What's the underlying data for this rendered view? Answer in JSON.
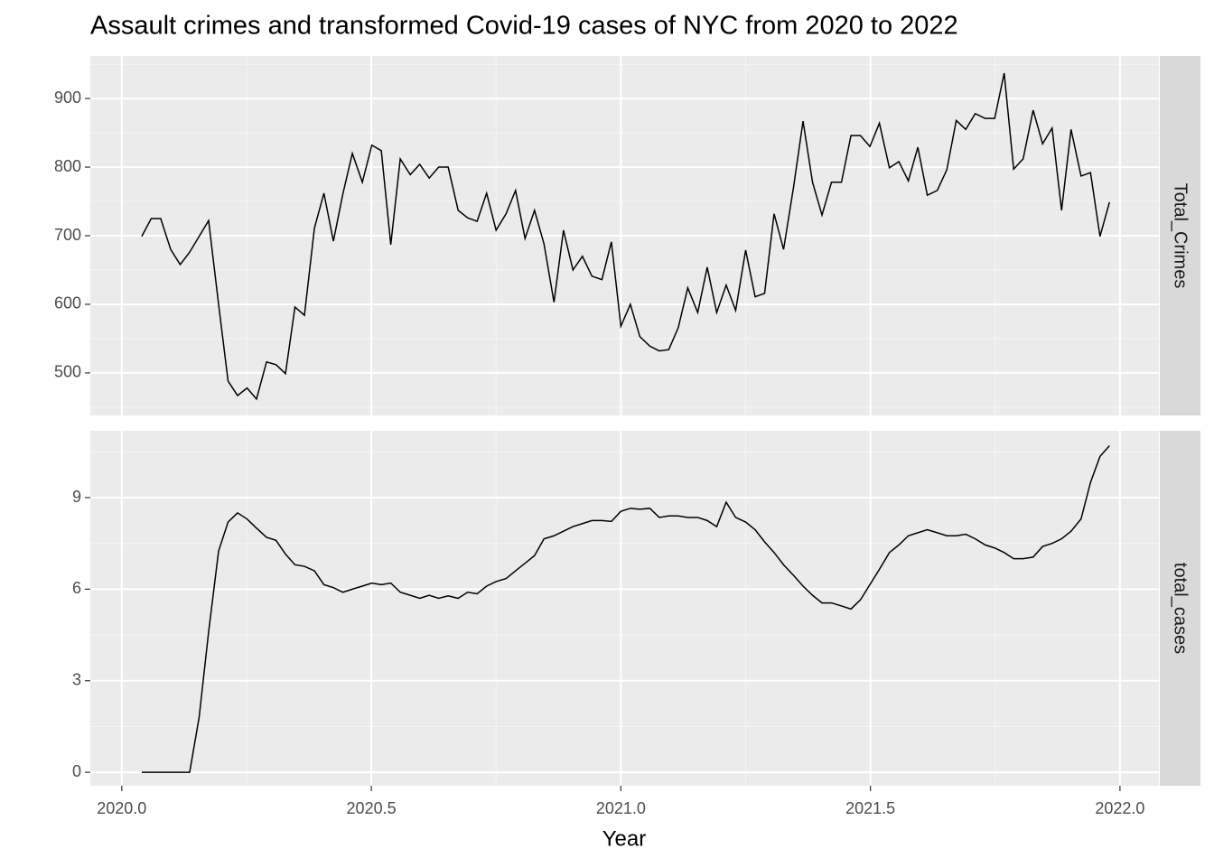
{
  "chart_data": [
    {
      "type": "line",
      "title": "Assault crimes and transformed Covid-19 cases of NYC from 2020 to 2022",
      "strip": "Total_Crimes",
      "color": "#000000",
      "grid": true,
      "xlim": [
        2019.937,
        2022.078
      ],
      "ylim": [
        438,
        962
      ],
      "yticks": [
        500,
        600,
        700,
        800,
        900
      ],
      "x": [
        2020.04,
        2020.059,
        2020.078,
        2020.098,
        2020.117,
        2020.136,
        2020.155,
        2020.174,
        2020.194,
        2020.213,
        2020.232,
        2020.251,
        2020.27,
        2020.29,
        2020.309,
        2020.328,
        2020.347,
        2020.366,
        2020.386,
        2020.405,
        2020.424,
        2020.443,
        2020.462,
        2020.482,
        2020.501,
        2020.52,
        2020.539,
        2020.558,
        2020.578,
        2020.597,
        2020.616,
        2020.635,
        2020.654,
        2020.674,
        2020.693,
        2020.712,
        2020.731,
        2020.75,
        2020.77,
        2020.789,
        2020.808,
        2020.827,
        2020.846,
        2020.866,
        2020.885,
        2020.904,
        2020.923,
        2020.942,
        2020.962,
        2020.981,
        2021.0,
        2021.019,
        2021.038,
        2021.058,
        2021.077,
        2021.096,
        2021.115,
        2021.134,
        2021.154,
        2021.173,
        2021.192,
        2021.211,
        2021.23,
        2021.25,
        2021.269,
        2021.288,
        2021.307,
        2021.326,
        2021.346,
        2021.365,
        2021.384,
        2021.403,
        2021.422,
        2021.442,
        2021.461,
        2021.48,
        2021.499,
        2021.518,
        2021.538,
        2021.557,
        2021.576,
        2021.595,
        2021.614,
        2021.634,
        2021.653,
        2021.672,
        2021.691,
        2021.71,
        2021.73,
        2021.749,
        2021.768,
        2021.787,
        2021.806,
        2021.826,
        2021.845,
        2021.864,
        2021.883,
        2021.902,
        2021.922,
        2021.941,
        2021.96,
        2021.979
      ],
      "values": [
        699,
        725,
        725,
        680,
        658,
        676,
        699,
        722,
        600,
        488,
        467,
        478,
        462,
        516,
        512,
        499,
        596,
        584,
        711,
        762,
        692,
        761,
        820,
        778,
        832,
        824,
        687,
        812,
        789,
        804,
        784,
        800,
        800,
        737,
        726,
        721,
        762,
        708,
        732,
        766,
        696,
        737,
        688,
        603,
        708,
        650,
        670,
        641,
        636,
        691,
        568,
        600,
        553,
        539,
        532,
        534,
        566,
        624,
        588,
        654,
        588,
        628,
        591,
        679,
        611,
        616,
        732,
        680,
        771,
        867,
        778,
        730,
        778,
        778,
        846,
        846,
        830,
        864,
        799,
        808,
        780,
        829,
        759,
        766,
        796,
        868,
        855,
        878,
        871,
        871,
        937,
        797,
        812,
        883,
        834,
        857,
        737,
        855,
        787,
        792,
        699,
        749
      ]
    },
    {
      "type": "line",
      "strip": "total_cases",
      "xlabel": "Year",
      "color": "#000000",
      "grid": true,
      "xlim": [
        2019.937,
        2022.078
      ],
      "ylim": [
        -0.44,
        11.19
      ],
      "yticks": [
        0,
        3,
        6,
        9
      ],
      "xticks": [
        {
          "value": 2020,
          "label": "2020.0"
        },
        {
          "value": 2020.5,
          "label": "2020.5"
        },
        {
          "value": 2021,
          "label": "2021.0"
        },
        {
          "value": 2021.5,
          "label": "2021.5"
        },
        {
          "value": 2022,
          "label": "2022.0"
        }
      ],
      "x": [
        2020.04,
        2020.059,
        2020.078,
        2020.098,
        2020.117,
        2020.136,
        2020.155,
        2020.174,
        2020.194,
        2020.213,
        2020.232,
        2020.251,
        2020.27,
        2020.29,
        2020.309,
        2020.328,
        2020.347,
        2020.366,
        2020.386,
        2020.405,
        2020.424,
        2020.443,
        2020.462,
        2020.482,
        2020.501,
        2020.52,
        2020.539,
        2020.558,
        2020.578,
        2020.597,
        2020.616,
        2020.635,
        2020.654,
        2020.674,
        2020.693,
        2020.712,
        2020.731,
        2020.75,
        2020.77,
        2020.789,
        2020.808,
        2020.827,
        2020.846,
        2020.866,
        2020.885,
        2020.904,
        2020.923,
        2020.942,
        2020.962,
        2020.981,
        2021.0,
        2021.019,
        2021.038,
        2021.058,
        2021.077,
        2021.096,
        2021.115,
        2021.134,
        2021.154,
        2021.173,
        2021.192,
        2021.211,
        2021.23,
        2021.25,
        2021.269,
        2021.288,
        2021.307,
        2021.326,
        2021.346,
        2021.365,
        2021.384,
        2021.403,
        2021.422,
        2021.442,
        2021.461,
        2021.48,
        2021.499,
        2021.518,
        2021.538,
        2021.557,
        2021.576,
        2021.595,
        2021.614,
        2021.634,
        2021.653,
        2021.672,
        2021.691,
        2021.71,
        2021.73,
        2021.749,
        2021.768,
        2021.787,
        2021.806,
        2021.826,
        2021.845,
        2021.864,
        2021.883,
        2021.902,
        2021.922,
        2021.941,
        2021.96,
        2021.979
      ],
      "values": [
        0,
        0,
        0,
        0,
        0,
        0,
        1.8,
        4.6,
        7.25,
        8.2,
        8.5,
        8.3,
        8.0,
        7.7,
        7.6,
        7.15,
        6.8,
        6.75,
        6.6,
        6.15,
        6.05,
        5.9,
        6.0,
        6.1,
        6.2,
        6.15,
        6.2,
        5.9,
        5.8,
        5.7,
        5.8,
        5.7,
        5.78,
        5.7,
        5.9,
        5.85,
        6.1,
        6.25,
        6.35,
        6.6,
        6.85,
        7.1,
        7.65,
        7.75,
        7.9,
        8.05,
        8.15,
        8.25,
        8.25,
        8.22,
        8.55,
        8.65,
        8.62,
        8.65,
        8.35,
        8.4,
        8.4,
        8.35,
        8.35,
        8.25,
        8.05,
        8.85,
        8.35,
        8.2,
        7.95,
        7.55,
        7.2,
        6.8,
        6.45,
        6.1,
        5.8,
        5.55,
        5.55,
        5.45,
        5.35,
        5.65,
        6.15,
        6.65,
        7.2,
        7.45,
        7.75,
        7.85,
        7.95,
        7.85,
        7.75,
        7.75,
        7.8,
        7.65,
        7.45,
        7.35,
        7.2,
        7.0,
        7.0,
        7.05,
        7.4,
        7.5,
        7.65,
        7.9,
        8.3,
        9.5,
        10.35,
        10.7
      ]
    }
  ]
}
